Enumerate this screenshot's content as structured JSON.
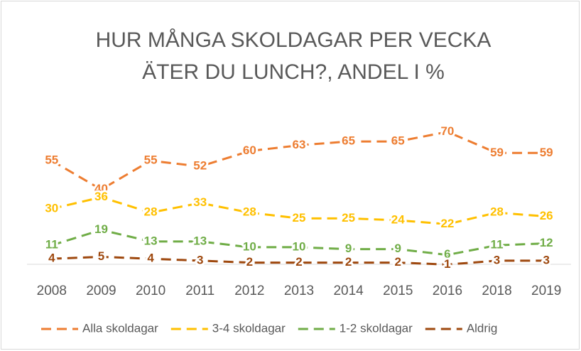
{
  "chart_data": {
    "type": "line",
    "title": [
      "HUR MÅNGA SKOLDAGAR PER VECKA",
      "ÄTER DU LUNCH?, ANDEL I %"
    ],
    "categories": [
      "2008",
      "2009",
      "2010",
      "2011",
      "2012",
      "2013",
      "2014",
      "2015",
      "2016",
      "2018",
      "2019"
    ],
    "series": [
      {
        "name": "Alla skoldagar",
        "color": "#ed7d31",
        "values": [
          55,
          40,
          55,
          52,
          60,
          63,
          65,
          65,
          70,
          59,
          59
        ]
      },
      {
        "name": "3-4 skoldagar",
        "color": "#ffc000",
        "values": [
          30,
          36,
          28,
          33,
          28,
          25,
          25,
          24,
          22,
          28,
          26
        ]
      },
      {
        "name": "1-2 skoldagar",
        "color": "#70ad47",
        "values": [
          11,
          19,
          13,
          13,
          10,
          10,
          9,
          9,
          6,
          11,
          12
        ]
      },
      {
        "name": "Aldrig",
        "color": "#9e480e",
        "values": [
          4,
          5,
          4,
          3,
          2,
          2,
          2,
          2,
          1,
          3,
          3
        ]
      }
    ],
    "ylim": [
      0,
      75
    ],
    "legend": "bottom",
    "dashed": true,
    "data_labels": true
  }
}
